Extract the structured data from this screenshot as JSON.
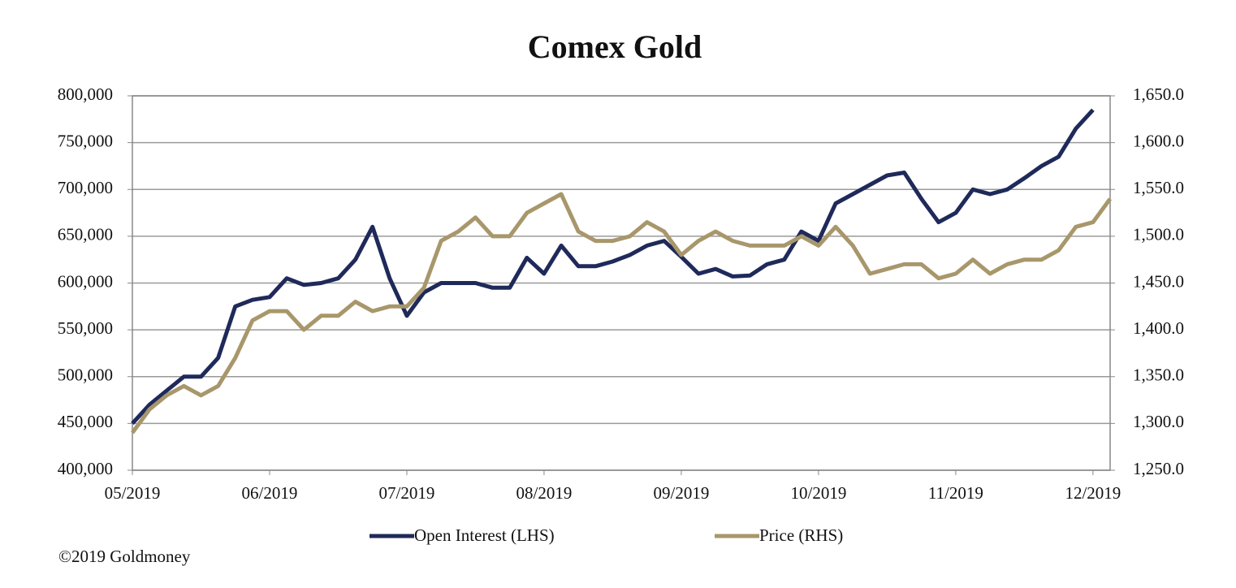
{
  "chart_data": {
    "type": "line",
    "title": "Comex Gold",
    "source": "©2019 Goldmoney",
    "categories": [
      "05/2019",
      null,
      null,
      null,
      null,
      null,
      null,
      null,
      "06/2019",
      null,
      null,
      null,
      null,
      null,
      null,
      null,
      "07/2019",
      null,
      null,
      null,
      null,
      null,
      null,
      null,
      "08/2019",
      null,
      null,
      null,
      null,
      null,
      null,
      null,
      "09/2019",
      null,
      null,
      null,
      null,
      null,
      null,
      null,
      "10/2019",
      null,
      null,
      null,
      null,
      null,
      null,
      null,
      "11/2019",
      null,
      null,
      null,
      null,
      null,
      null,
      null,
      "12/2019",
      null
    ],
    "series": [
      {
        "name": "Open Interest (LHS)",
        "color": "#1f2a5a",
        "axis": "y",
        "values": [
          450000,
          470000,
          485000,
          500000,
          500000,
          520000,
          575000,
          582000,
          585000,
          605000,
          598000,
          600000,
          605000,
          625000,
          660000,
          605000,
          565000,
          590000,
          600000,
          600000,
          600000,
          595000,
          595000,
          627000,
          610000,
          640000,
          618000,
          618000,
          623000,
          630000,
          640000,
          645000,
          628000,
          610000,
          615000,
          607000,
          608000,
          620000,
          625000,
          655000,
          645000,
          685000,
          695000,
          705000,
          715000,
          718000,
          690000,
          665000,
          675000,
          700000,
          695000,
          700000,
          712000,
          725000,
          735000,
          765000,
          785000,
          null
        ]
      },
      {
        "name": "Price (RHS)",
        "color": "#a8976b",
        "axis": "y2",
        "values": [
          1290,
          1315,
          1330,
          1340,
          1330,
          1340,
          1370,
          1410,
          1420,
          1420,
          1400,
          1415,
          1415,
          1430,
          1420,
          1425,
          1425,
          1445,
          1495,
          1505,
          1520,
          1500,
          1500,
          1525,
          1535,
          1545,
          1505,
          1495,
          1495,
          1500,
          1515,
          1505,
          1480,
          1495,
          1505,
          1495,
          1490,
          1490,
          1490,
          1500,
          1490,
          1510,
          1490,
          1460,
          1465,
          1470,
          1470,
          1455,
          1460,
          1475,
          1460,
          1470,
          1475,
          1475,
          1485,
          1510,
          1515,
          1540
        ]
      }
    ],
    "ylim": [
      400000,
      800000
    ],
    "yticks": [
      {
        "value": 400000,
        "label": "400,000"
      },
      {
        "value": 450000,
        "label": "450,000"
      },
      {
        "value": 500000,
        "label": "500,000"
      },
      {
        "value": 550000,
        "label": "550,000"
      },
      {
        "value": 600000,
        "label": "600,000"
      },
      {
        "value": 650000,
        "label": "650,000"
      },
      {
        "value": 700000,
        "label": "700,000"
      },
      {
        "value": 750000,
        "label": "750,000"
      },
      {
        "value": 800000,
        "label": "800,000"
      }
    ],
    "y2lim": [
      1250,
      1650
    ],
    "y2ticks": [
      {
        "value": 1250,
        "label": "1,250.0"
      },
      {
        "value": 1300,
        "label": "1,300.0"
      },
      {
        "value": 1350,
        "label": "1,350.0"
      },
      {
        "value": 1400,
        "label": "1,400.0"
      },
      {
        "value": 1450,
        "label": "1,450.0"
      },
      {
        "value": 1500,
        "label": "1,500.0"
      },
      {
        "value": 1550,
        "label": "1,550.0"
      },
      {
        "value": 1600,
        "label": "1,600.0"
      },
      {
        "value": 1650,
        "label": "1,650.0"
      }
    ],
    "grid": true
  }
}
